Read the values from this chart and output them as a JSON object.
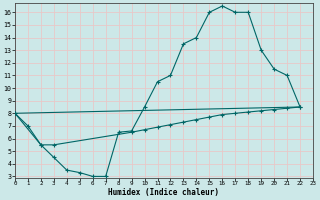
{
  "xlabel": "Humidex (Indice chaleur)",
  "bg_color": "#cce8e8",
  "line_color": "#006666",
  "grid_color": "#e8c8c8",
  "xlim": [
    0,
    23
  ],
  "ylim": [
    3,
    16.5
  ],
  "yticks": [
    3,
    4,
    5,
    6,
    7,
    8,
    9,
    10,
    11,
    12,
    13,
    14,
    15,
    16
  ],
  "xticks": [
    0,
    1,
    2,
    3,
    4,
    5,
    6,
    7,
    8,
    9,
    10,
    11,
    12,
    13,
    14,
    15,
    16,
    17,
    18,
    19,
    20,
    21,
    22,
    23
  ],
  "line1_x": [
    0,
    1,
    2,
    3,
    4,
    5,
    6,
    7,
    8,
    9,
    10,
    11,
    12,
    13,
    14,
    15,
    16,
    17,
    18,
    19,
    20,
    21,
    22
  ],
  "line1_y": [
    8.0,
    7.0,
    5.5,
    4.5,
    3.5,
    3.3,
    3.0,
    3.0,
    6.5,
    6.6,
    8.5,
    10.5,
    11.0,
    13.5,
    14.0,
    16.0,
    16.5,
    16.0,
    16.0,
    13.0,
    11.5,
    11.0,
    8.5
  ],
  "line2_x": [
    0,
    2,
    3,
    9,
    10,
    11,
    12,
    13,
    14,
    15,
    16,
    17,
    18,
    19,
    20,
    21,
    22
  ],
  "line2_y": [
    8.0,
    5.5,
    5.5,
    6.5,
    6.7,
    6.9,
    7.1,
    7.3,
    7.5,
    7.7,
    7.9,
    8.0,
    8.1,
    8.2,
    8.3,
    8.4,
    8.5
  ],
  "line3_x": [
    0,
    22
  ],
  "line3_y": [
    8.0,
    8.5
  ],
  "figwidth": 3.2,
  "figheight": 2.0,
  "dpi": 100
}
